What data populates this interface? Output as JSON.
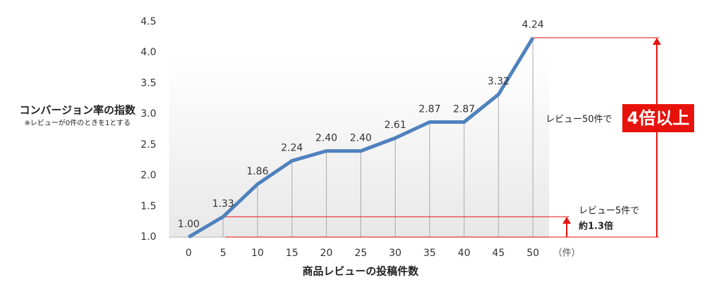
{
  "chart_data": {
    "type": "line",
    "title": "コンバージョン率の指数",
    "subtitle": "※レビューが0件のときを1とする",
    "x_label": "商品レビューの投稿件数",
    "x_unit": "（件）",
    "x": [
      0,
      5,
      10,
      15,
      20,
      25,
      30,
      35,
      40,
      45,
      50
    ],
    "values": [
      1.0,
      1.33,
      1.86,
      2.24,
      2.4,
      2.4,
      2.61,
      2.87,
      2.87,
      3.32,
      4.24
    ],
    "value_labels": [
      "1.00",
      "1.33",
      "1.86",
      "2.24",
      "2.40",
      "2.40",
      "2.61",
      "2.87",
      "2.87",
      "3.32",
      "4.24"
    ],
    "color": "#4f81bd",
    "xlim": [
      0,
      50
    ],
    "xticks": [
      0,
      5,
      10,
      15,
      20,
      25,
      30,
      35,
      40,
      45,
      50
    ],
    "ylim": [
      1,
      4.5
    ],
    "yticks": [
      {
        "value": 1,
        "label": "1.0"
      },
      1.5,
      {
        "value": 2,
        "label": "2.0"
      },
      2.5,
      {
        "value": 3,
        "label": "3.0"
      },
      3.5,
      {
        "value": 4,
        "label": "4.0"
      },
      4.5
    ],
    "annotations": [
      "レビュー50件で",
      "4倍以上",
      "レビュー5件で",
      "約1.3倍"
    ]
  }
}
